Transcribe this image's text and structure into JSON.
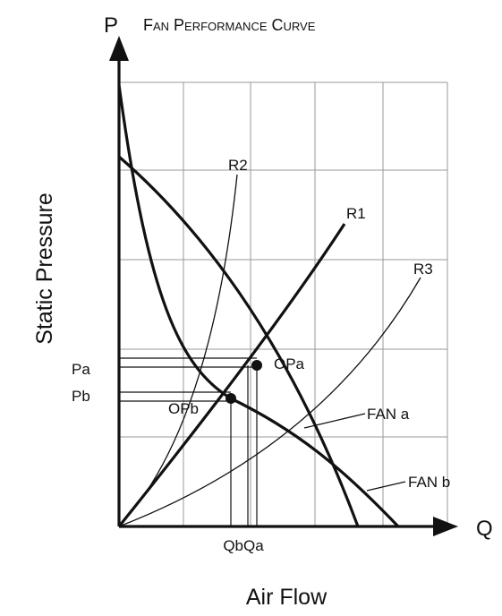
{
  "header": {
    "axis_p": "P",
    "title": "Fan Performance Curve",
    "axis_q": "Q"
  },
  "axes": {
    "y_label": "Static Pressure",
    "x_label": "Air Flow"
  },
  "levels": {
    "pa": "Pa",
    "pb": "Pb",
    "flows": "QbQa"
  },
  "curves": {
    "r1": "R1",
    "r2": "R2",
    "r3": "R3",
    "fan_a": "FAN  a",
    "fan_b": "FAN  b"
  },
  "points": {
    "opa": "OPa",
    "opb": "OPb"
  }
}
